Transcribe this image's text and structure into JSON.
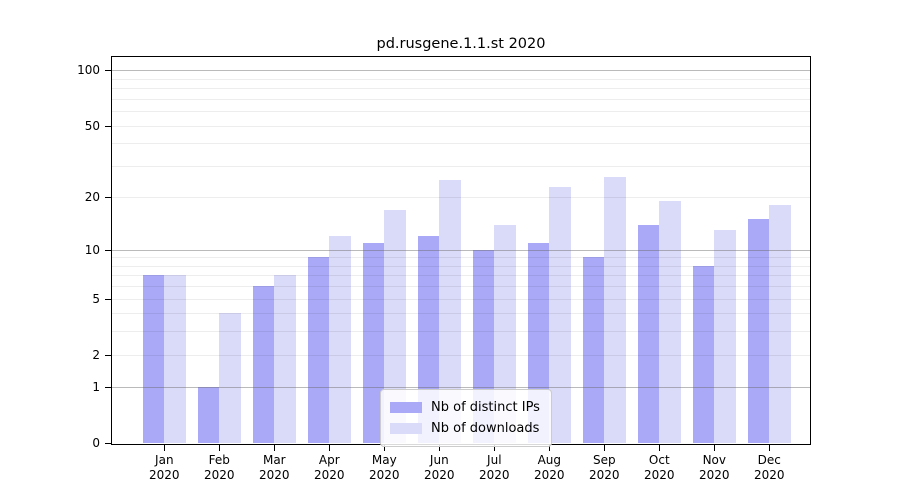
{
  "title": "pd.rusgene.1.1.st 2020",
  "chart_data": {
    "type": "bar",
    "title": "pd.rusgene.1.1.st 2020",
    "xlabel": "",
    "ylabel": "",
    "categories": [
      "Jan",
      "Feb",
      "Mar",
      "Apr",
      "May",
      "Jun",
      "Jul",
      "Aug",
      "Sep",
      "Oct",
      "Nov",
      "Dec"
    ],
    "category_year": "2020",
    "series": [
      {
        "name": "Nb of distinct IPs",
        "color": "#a9a9f7",
        "values": [
          7,
          1,
          6,
          9,
          11,
          12,
          10,
          11,
          9,
          14,
          8,
          15
        ]
      },
      {
        "name": "Nb of downloads",
        "color": "#dadaf9",
        "values": [
          7,
          4,
          7,
          12,
          17,
          25,
          14,
          23,
          26,
          19,
          13,
          18
        ]
      }
    ],
    "y_scale": "log10(1+v)",
    "ylim": [
      0,
      118
    ],
    "y_ticks": [
      0,
      1,
      2,
      5,
      10,
      20,
      50,
      100
    ],
    "y_major_gridlines": [
      1,
      10,
      100
    ],
    "y_minor_gridlines": [
      2,
      3,
      4,
      5,
      6,
      7,
      8,
      9,
      20,
      30,
      40,
      50,
      60,
      70,
      80,
      90
    ],
    "grid": "on",
    "legend_position": "lower center inside"
  },
  "legend": {
    "items": [
      {
        "label": "Nb of distinct IPs"
      },
      {
        "label": "Nb of downloads"
      }
    ]
  },
  "colors": {
    "bar_distinct_ips": "#a9a9f7",
    "bar_downloads": "#dadaf9",
    "axis": "#000000",
    "grid_major": "#bdbdbd",
    "grid_minor": "#ededed",
    "background": "#ffffff"
  }
}
